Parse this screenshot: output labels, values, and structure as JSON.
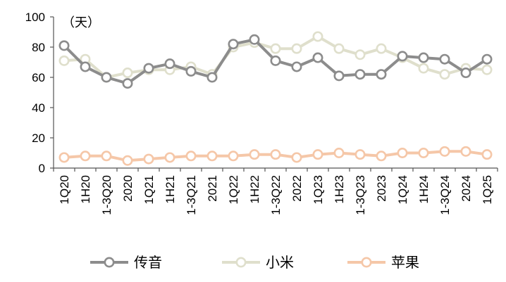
{
  "chart_data": {
    "type": "line",
    "unit_label": "（天）",
    "ylim": [
      0,
      100
    ],
    "yticks": [
      0,
      20,
      40,
      60,
      80,
      100
    ],
    "categories": [
      "1Q20",
      "1H20",
      "1-3Q20",
      "2020",
      "1Q21",
      "1H21",
      "1-3Q21",
      "2021",
      "1Q22",
      "1H22",
      "1-3Q22",
      "2022",
      "1Q23",
      "1H23",
      "1-3Q23",
      "2023",
      "1Q24",
      "1H24",
      "1-3Q24",
      "2024",
      "1Q25"
    ],
    "series": [
      {
        "name": "传音",
        "color": "#8c8c8c",
        "values": [
          81,
          67,
          60,
          56,
          66,
          69,
          64,
          60,
          82,
          85,
          71,
          67,
          73,
          61,
          62,
          62,
          74,
          73,
          72,
          63,
          72
        ]
      },
      {
        "name": "小米",
        "color": "#dfdfcc",
        "values": [
          71,
          72,
          60,
          63,
          65,
          65,
          67,
          62,
          80,
          83,
          79,
          79,
          87,
          79,
          75,
          79,
          73,
          66,
          62,
          66,
          65
        ]
      },
      {
        "name": "苹果",
        "color": "#f5c7a8",
        "values": [
          7,
          8,
          8,
          5,
          6,
          7,
          8,
          8,
          8,
          9,
          9,
          7,
          9,
          10,
          9,
          8,
          10,
          10,
          11,
          11,
          9
        ]
      }
    ],
    "legend_position": "bottom",
    "grid": false
  }
}
